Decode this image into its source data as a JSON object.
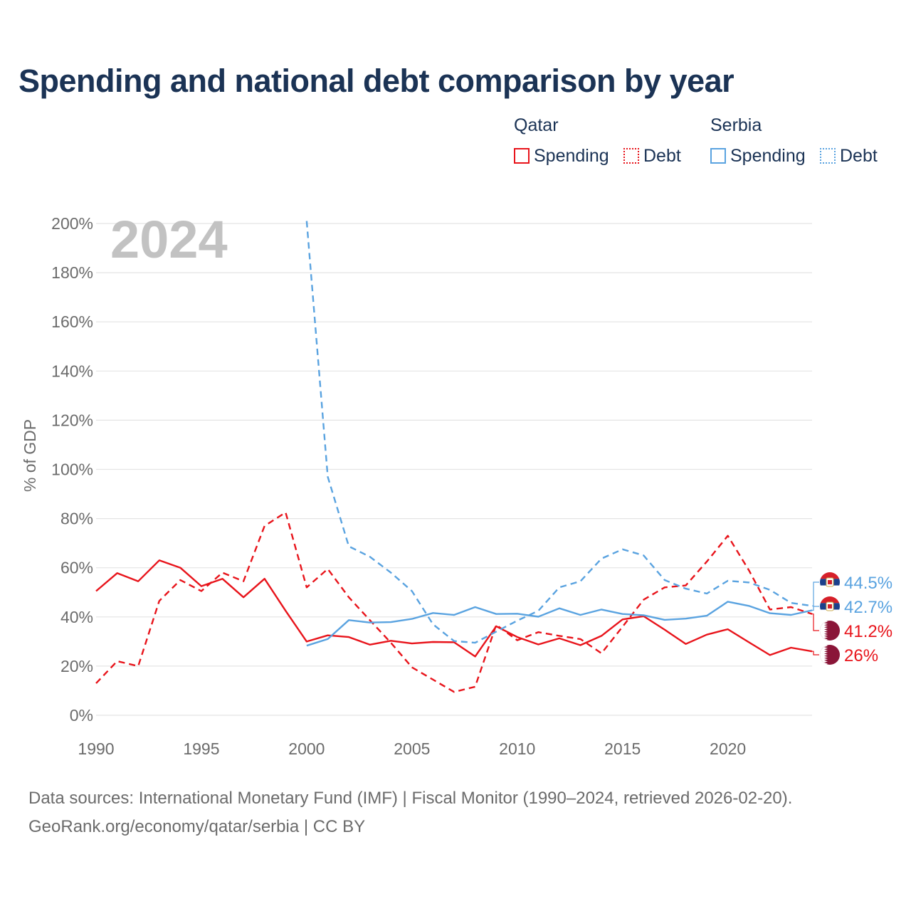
{
  "title": "Spending and national debt comparison by year",
  "legend": {
    "groups": [
      {
        "label": "Qatar",
        "items": [
          {
            "label": "Spending",
            "style": "solid"
          },
          {
            "label": "Debt",
            "style": "dotted"
          }
        ],
        "color": "#e8141b"
      },
      {
        "label": "Serbia",
        "items": [
          {
            "label": "Spending",
            "style": "solid"
          },
          {
            "label": "Debt",
            "style": "dotted"
          }
        ],
        "color": "#5aa3e0"
      }
    ]
  },
  "year_label": "2024",
  "footer": {
    "line1": "Data sources: International Monetary Fund (IMF) | Fiscal Monitor (1990–2024, retrieved 2026-02-20).",
    "line2": "GeoRank.org/economy/qatar/serbia | CC BY"
  },
  "chart_data": {
    "type": "line",
    "title": "Spending and national debt comparison by year",
    "xlabel": "",
    "ylabel": "% of GDP",
    "xlim": [
      1990,
      2024
    ],
    "ylim": [
      0,
      200
    ],
    "x_ticks": [
      1990,
      1995,
      2000,
      2005,
      2010,
      2015,
      2020
    ],
    "y_ticks": [
      0,
      20,
      40,
      60,
      80,
      100,
      120,
      140,
      160,
      180,
      200
    ],
    "y_tick_labels": [
      "0%",
      "20%",
      "40%",
      "60%",
      "80%",
      "100%",
      "120%",
      "140%",
      "160%",
      "180%",
      "200%"
    ],
    "x_tick_labels": [
      "1990",
      "1995",
      "2000",
      "2005",
      "2010",
      "2015",
      "2020"
    ],
    "grid": true,
    "series": [
      {
        "name": "Qatar Spending",
        "country": "Qatar",
        "color": "#e8141b",
        "dash": "solid",
        "x": [
          1990,
          1991,
          1992,
          1993,
          1994,
          1995,
          1996,
          1997,
          1998,
          1999,
          2000,
          2001,
          2002,
          2003,
          2004,
          2005,
          2006,
          2007,
          2008,
          2009,
          2010,
          2011,
          2012,
          2013,
          2014,
          2015,
          2016,
          2017,
          2018,
          2019,
          2020,
          2021,
          2022,
          2023,
          2024
        ],
        "values": [
          50.5,
          57.8,
          54.5,
          63,
          60,
          52.5,
          55.5,
          48,
          55.5,
          42.5,
          30,
          32.5,
          31.8,
          28.7,
          30.3,
          29.2,
          29.8,
          29.7,
          23.9,
          36.2,
          31.8,
          28.8,
          31.3,
          28.5,
          32.3,
          39,
          40.3,
          34.8,
          29,
          32.8,
          35,
          29.7,
          24.5,
          27.5,
          26
        ]
      },
      {
        "name": "Qatar Debt",
        "country": "Qatar",
        "color": "#e8141b",
        "dash": "dashed",
        "x": [
          1990,
          1991,
          1992,
          1993,
          1994,
          1995,
          1996,
          1997,
          1998,
          1999,
          2000,
          2001,
          2002,
          2003,
          2004,
          2005,
          2006,
          2007,
          2008,
          2009,
          2010,
          2011,
          2012,
          2013,
          2014,
          2015,
          2016,
          2017,
          2018,
          2019,
          2020,
          2021,
          2022,
          2023,
          2024
        ],
        "values": [
          13,
          22,
          20,
          46.5,
          55,
          50.5,
          58,
          54.5,
          77,
          82.5,
          52,
          59.5,
          48,
          38.7,
          29.5,
          19.5,
          14.5,
          9.5,
          11.6,
          36.8,
          30.5,
          33.8,
          32.3,
          31,
          25.2,
          36,
          47,
          52,
          52.8,
          62.5,
          73,
          59,
          43,
          44,
          41.2
        ]
      },
      {
        "name": "Serbia Spending",
        "country": "Serbia",
        "color": "#5aa3e0",
        "dash": "solid",
        "x": [
          2000,
          2001,
          2002,
          2003,
          2004,
          2005,
          2006,
          2007,
          2008,
          2009,
          2010,
          2011,
          2012,
          2013,
          2014,
          2015,
          2016,
          2017,
          2018,
          2019,
          2020,
          2021,
          2022,
          2023,
          2024
        ],
        "values": [
          28.3,
          31,
          38.7,
          37.7,
          37.9,
          39.2,
          41.6,
          40.8,
          44,
          41.2,
          41.3,
          40.1,
          43.5,
          40.8,
          43,
          41.2,
          40.7,
          38.8,
          39.3,
          40.5,
          46.2,
          44.5,
          41.5,
          40.8,
          42.7
        ]
      },
      {
        "name": "Serbia Debt",
        "country": "Serbia",
        "color": "#5aa3e0",
        "dash": "dashed",
        "x": [
          2000,
          2001,
          2002,
          2003,
          2004,
          2005,
          2006,
          2007,
          2008,
          2009,
          2010,
          2011,
          2012,
          2013,
          2014,
          2015,
          2016,
          2017,
          2018,
          2019,
          2020,
          2021,
          2022,
          2023,
          2024
        ],
        "values": [
          201,
          97,
          68.7,
          64.5,
          58,
          50.5,
          37,
          30.2,
          29.5,
          34,
          38.5,
          42.5,
          52,
          54.5,
          63.7,
          67.5,
          65,
          55,
          51.5,
          49.5,
          54.7,
          54,
          51,
          45.7,
          44.5
        ]
      }
    ],
    "end_labels": [
      {
        "series": "Serbia Debt",
        "text": "44.5%",
        "value": 44.5,
        "color": "#5aa3e0",
        "flag": "Serbia"
      },
      {
        "series": "Serbia Spending",
        "text": "42.7%",
        "value": 42.7,
        "color": "#5aa3e0",
        "flag": "Serbia"
      },
      {
        "series": "Qatar Debt",
        "text": "41.2%",
        "value": 41.2,
        "color": "#e8141b",
        "flag": "Qatar"
      },
      {
        "series": "Qatar Spending",
        "text": "26%",
        "value": 26,
        "color": "#e8141b",
        "flag": "Qatar"
      }
    ]
  }
}
